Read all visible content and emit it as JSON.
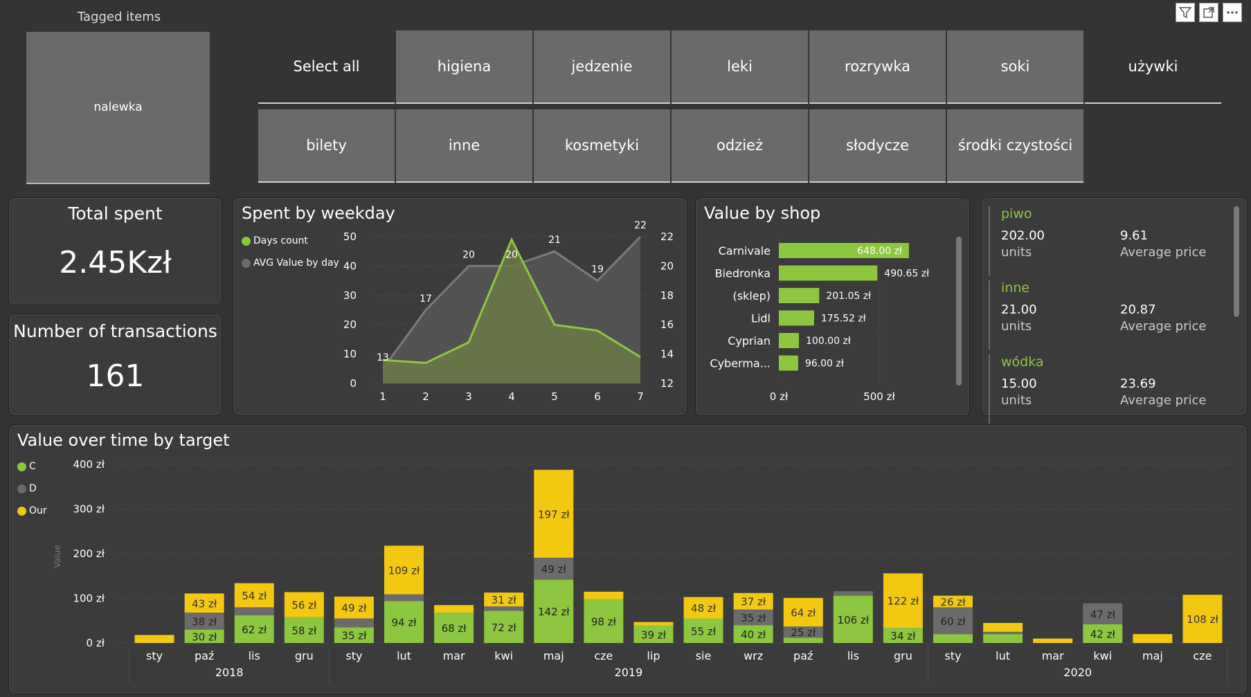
{
  "colors": {
    "green": "#8dc63f",
    "gray": "#6b6b6b",
    "yellow": "#f2c811",
    "panel": "#3b3b3b",
    "bg": "#343434",
    "tile": "#6a6a6a"
  },
  "toolbar": {
    "icons": [
      "filter-icon",
      "focus-mode-icon",
      "more-options-icon"
    ]
  },
  "tagged_items": {
    "title": "Tagged items",
    "selected": "nalewka"
  },
  "tag_slicer": {
    "row1": [
      "Select all",
      "higiena",
      "jedzenie",
      "leki",
      "rozrywka",
      "soki",
      "używki"
    ],
    "row2": [
      "bilety",
      "inne",
      "kosmetyki",
      "odzież",
      "słodycze",
      "środki czystości"
    ]
  },
  "total_spent": {
    "label": "Total spent",
    "value": "2.45Kzł"
  },
  "transactions": {
    "label": "Number of transactions",
    "value": "161"
  },
  "weekday": {
    "title": "Spent by weekday"
  },
  "shop": {
    "title": "Value by shop"
  },
  "stats": [
    {
      "name": "piwo",
      "units": "202.00",
      "units_label": "units",
      "avg": "9.61",
      "avg_label": "Average price"
    },
    {
      "name": "inne",
      "units": "21.00",
      "units_label": "units",
      "avg": "20.87",
      "avg_label": "Average price"
    },
    {
      "name": "wódka",
      "units": "15.00",
      "units_label": "units",
      "avg": "23.69",
      "avg_label": "Average price"
    }
  ],
  "timeline": {
    "title": "Value over time by target"
  },
  "chart_data": [
    {
      "type": "line",
      "title": "Spent by weekday",
      "x": [
        1,
        2,
        3,
        4,
        5,
        6,
        7
      ],
      "series": [
        {
          "name": "Days count",
          "axis": "left",
          "values": [
            8,
            7,
            14,
            49,
            20,
            18,
            9
          ]
        },
        {
          "name": "AVG Value by day",
          "axis": "right",
          "values": [
            13,
            17,
            20,
            20,
            21,
            19,
            22
          ],
          "labels": [
            "13",
            "17",
            "20",
            "20",
            "21",
            "19",
            "22"
          ]
        }
      ],
      "ylim_left": [
        0,
        50
      ],
      "yticks_left": [
        "0",
        "10",
        "20",
        "30",
        "40",
        "50"
      ],
      "ylim_right": [
        12,
        22
      ],
      "yticks_right": [
        "12",
        "14",
        "16",
        "18",
        "20",
        "22"
      ],
      "xticks": [
        "1",
        "2",
        "3",
        "4",
        "5",
        "6",
        "7"
      ],
      "legend": "top-left"
    },
    {
      "type": "bar",
      "title": "Value by shop",
      "orientation": "horizontal",
      "categories": [
        "Carnivale",
        "Biedronka",
        "(sklep)",
        "Lidl",
        "Cyprian",
        "Cyberma..."
      ],
      "values": [
        648.0,
        490.65,
        201.05,
        175.52,
        100.0,
        96.0
      ],
      "labels": [
        "648.00 zł",
        "490.65 zł",
        "201.05 zł",
        "175.52 zł",
        "100.00 zł",
        "96.00 zł"
      ],
      "xticks": [
        "0 zł",
        "500 zł"
      ],
      "xlim": [
        0,
        1000
      ]
    },
    {
      "type": "bar",
      "stacked": true,
      "title": "Value over time by target",
      "ylabel": "Value",
      "ylim": [
        0,
        400
      ],
      "yticks": [
        "0 zł",
        "100 zł",
        "200 zł",
        "300 zł",
        "400 zł"
      ],
      "legend": [
        "C",
        "D",
        "Our"
      ],
      "categories": [
        "sty",
        "paź",
        "lis",
        "gru",
        "sty",
        "lut",
        "mar",
        "kwi",
        "maj",
        "cze",
        "lip",
        "sie",
        "wrz",
        "paź",
        "lis",
        "gru",
        "sty",
        "lut",
        "mar",
        "kwi",
        "maj",
        "cze"
      ],
      "years": [
        {
          "label": "2018",
          "start": 0,
          "end": 3
        },
        {
          "label": "2019",
          "start": 4,
          "end": 15
        },
        {
          "label": "2020",
          "start": 16,
          "end": 21
        }
      ],
      "series": [
        {
          "name": "C",
          "values": [
            0,
            30,
            62,
            58,
            35,
            94,
            68,
            72,
            142,
            98,
            39,
            55,
            40,
            12,
            106,
            34,
            20,
            20,
            0,
            42,
            0,
            0
          ],
          "labels": [
            "",
            "30 zł",
            "62 zł",
            "58 zł",
            "35 zł",
            "94 zł",
            "68 zł",
            "72 zł",
            "142 zł",
            "98 zł",
            "39 zł",
            "55 zł",
            "40 zł",
            "",
            "106 zł",
            "34 zł",
            "",
            "",
            "",
            "42 zł",
            "",
            ""
          ]
        },
        {
          "name": "D",
          "values": [
            0,
            38,
            18,
            0,
            20,
            15,
            0,
            10,
            49,
            0,
            0,
            0,
            35,
            25,
            10,
            0,
            60,
            5,
            0,
            47,
            0,
            0
          ],
          "labels": [
            "",
            "38 zł",
            "",
            "",
            "",
            "",
            "",
            "",
            "49 zł",
            "",
            "",
            "",
            "35 zł",
            "25 zł",
            "",
            "",
            "60 zł",
            "",
            "",
            "47 zł",
            "",
            ""
          ]
        },
        {
          "name": "Our",
          "values": [
            18,
            43,
            54,
            56,
            49,
            109,
            17,
            31,
            197,
            17,
            8,
            48,
            37,
            64,
            0,
            122,
            26,
            20,
            10,
            0,
            20,
            108
          ],
          "labels": [
            "",
            "43 zł",
            "54 zł",
            "56 zł",
            "49 zł",
            "109 zł",
            "",
            "31 zł",
            "197 zł",
            "",
            "",
            "48 zł",
            "37 zł",
            "64 zł",
            "",
            "122 zł",
            "26 zł",
            "",
            "",
            "",
            "",
            "108 zł"
          ]
        }
      ]
    }
  ]
}
